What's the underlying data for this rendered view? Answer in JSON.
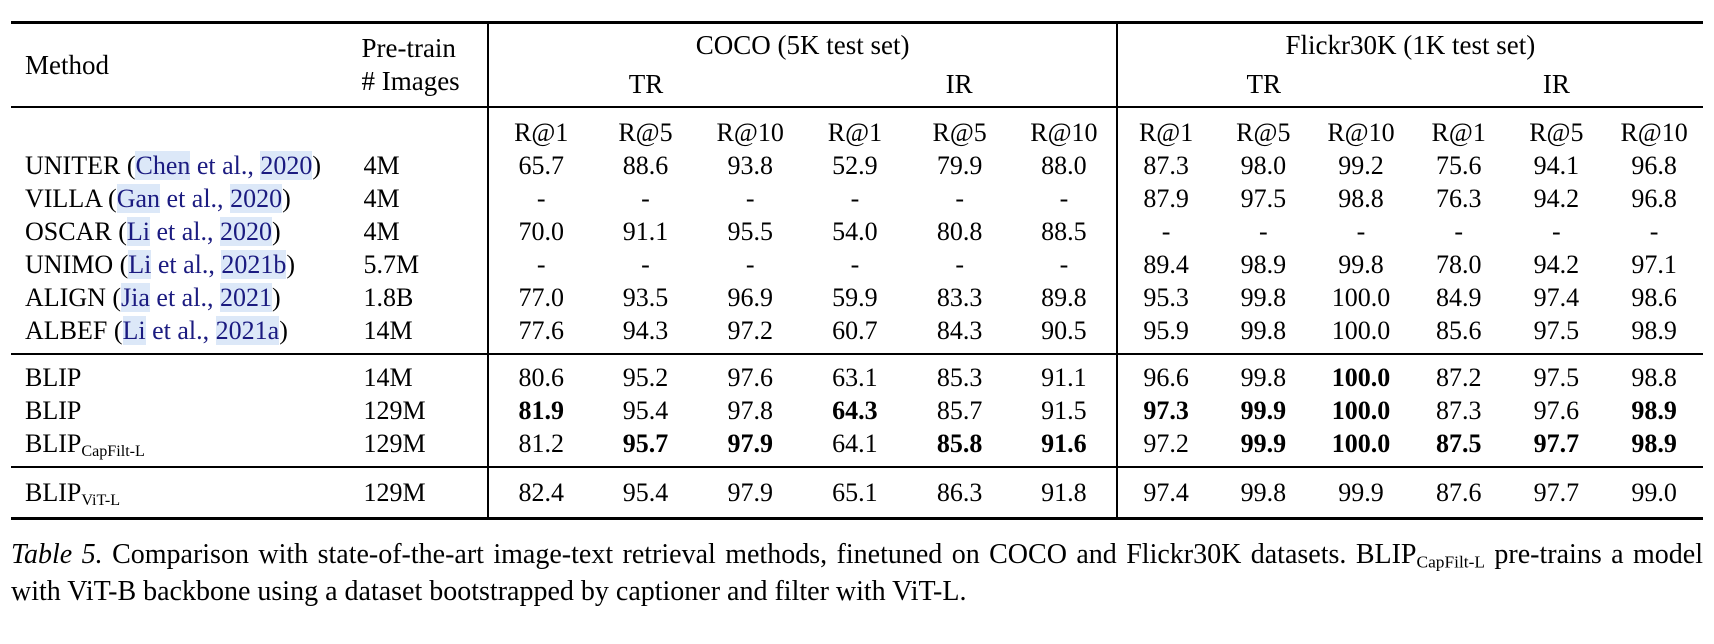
{
  "colors": {
    "citation_text": "#1b1b80",
    "citation_highlight": "#dce8f8",
    "rule": "#000000",
    "background": "#ffffff"
  },
  "table": {
    "header": {
      "method": "Method",
      "pretrain": [
        "Pre-train",
        "# Images"
      ],
      "groups": [
        {
          "label": "COCO (5K test set)"
        },
        {
          "label": "Flickr30K (1K test set)"
        }
      ],
      "subgroups": [
        "TR",
        "IR",
        "TR",
        "IR"
      ],
      "metrics": [
        "R@1",
        "R@5",
        "R@10",
        "R@1",
        "R@5",
        "R@10",
        "R@1",
        "R@5",
        "R@10",
        "R@1",
        "R@5",
        "R@10"
      ]
    },
    "rows": [
      {
        "method": [
          {
            "text": "UNITER (",
            "style": "plain"
          },
          {
            "text": "Chen",
            "style": "cite-hl"
          },
          {
            "text": " et al., ",
            "style": "cite"
          },
          {
            "text": "2020",
            "style": "cite-hl"
          },
          {
            "text": ")",
            "style": "plain"
          }
        ],
        "pretrain": "4M",
        "values": [
          "65.7",
          "88.6",
          "93.8",
          "52.9",
          "79.9",
          "88.0",
          "87.3",
          "98.0",
          "99.2",
          "75.6",
          "94.1",
          "96.8"
        ],
        "bold": [
          0,
          0,
          0,
          0,
          0,
          0,
          0,
          0,
          0,
          0,
          0,
          0
        ]
      },
      {
        "method": [
          {
            "text": "VILLA (",
            "style": "plain"
          },
          {
            "text": "Gan",
            "style": "cite-hl"
          },
          {
            "text": " et al., ",
            "style": "cite"
          },
          {
            "text": "2020",
            "style": "cite-hl"
          },
          {
            "text": ")",
            "style": "plain"
          }
        ],
        "pretrain": "4M",
        "values": [
          "-",
          "-",
          "-",
          "-",
          "-",
          "-",
          "87.9",
          "97.5",
          "98.8",
          "76.3",
          "94.2",
          "96.8"
        ],
        "bold": [
          0,
          0,
          0,
          0,
          0,
          0,
          0,
          0,
          0,
          0,
          0,
          0
        ]
      },
      {
        "method": [
          {
            "text": "OSCAR (",
            "style": "plain"
          },
          {
            "text": "Li",
            "style": "cite-hl"
          },
          {
            "text": " et al., ",
            "style": "cite"
          },
          {
            "text": "2020",
            "style": "cite-hl"
          },
          {
            "text": ")",
            "style": "plain"
          }
        ],
        "pretrain": "4M",
        "values": [
          "70.0",
          "91.1",
          "95.5",
          "54.0",
          "80.8",
          "88.5",
          "-",
          "-",
          "-",
          "-",
          "-",
          "-"
        ],
        "bold": [
          0,
          0,
          0,
          0,
          0,
          0,
          0,
          0,
          0,
          0,
          0,
          0
        ]
      },
      {
        "method": [
          {
            "text": "UNIMO (",
            "style": "plain"
          },
          {
            "text": "Li",
            "style": "cite-hl"
          },
          {
            "text": " et al., ",
            "style": "cite"
          },
          {
            "text": "2021b",
            "style": "cite-hl"
          },
          {
            "text": ")",
            "style": "plain"
          }
        ],
        "pretrain": "5.7M",
        "values": [
          "-",
          "-",
          "-",
          "-",
          "-",
          "-",
          "89.4",
          "98.9",
          "99.8",
          "78.0",
          "94.2",
          "97.1"
        ],
        "bold": [
          0,
          0,
          0,
          0,
          0,
          0,
          0,
          0,
          0,
          0,
          0,
          0
        ]
      },
      {
        "method": [
          {
            "text": "ALIGN (",
            "style": "plain"
          },
          {
            "text": "Jia",
            "style": "cite-hl"
          },
          {
            "text": " et al., ",
            "style": "cite"
          },
          {
            "text": "2021",
            "style": "cite-hl"
          },
          {
            "text": ")",
            "style": "plain"
          }
        ],
        "pretrain": "1.8B",
        "values": [
          "77.0",
          "93.5",
          "96.9",
          "59.9",
          "83.3",
          "89.8",
          "95.3",
          "99.8",
          "100.0",
          "84.9",
          "97.4",
          "98.6"
        ],
        "bold": [
          0,
          0,
          0,
          0,
          0,
          0,
          0,
          0,
          0,
          0,
          0,
          0
        ]
      },
      {
        "method": [
          {
            "text": "ALBEF (",
            "style": "plain"
          },
          {
            "text": "Li",
            "style": "cite-hl"
          },
          {
            "text": " et al., ",
            "style": "cite"
          },
          {
            "text": "2021a",
            "style": "cite-hl"
          },
          {
            "text": ")",
            "style": "plain"
          }
        ],
        "pretrain": "14M",
        "values": [
          "77.6",
          "94.3",
          "97.2",
          "60.7",
          "84.3",
          "90.5",
          "95.9",
          "99.8",
          "100.0",
          "85.6",
          "97.5",
          "98.9"
        ],
        "bold": [
          0,
          0,
          0,
          0,
          0,
          0,
          0,
          0,
          0,
          0,
          0,
          0
        ],
        "pad_bottom": true
      },
      {
        "method": [
          {
            "text": "BLIP",
            "style": "plain"
          }
        ],
        "pretrain": "14M",
        "values": [
          "80.6",
          "95.2",
          "97.6",
          "63.1",
          "85.3",
          "91.1",
          "96.6",
          "99.8",
          "100.0",
          "87.2",
          "97.5",
          "98.8"
        ],
        "bold": [
          0,
          0,
          0,
          0,
          0,
          0,
          0,
          0,
          1,
          0,
          0,
          0
        ],
        "rule_above": true
      },
      {
        "method": [
          {
            "text": "BLIP",
            "style": "plain"
          }
        ],
        "pretrain": "129M",
        "values": [
          "81.9",
          "95.4",
          "97.8",
          "64.3",
          "85.7",
          "91.5",
          "97.3",
          "99.9",
          "100.0",
          "87.3",
          "97.6",
          "98.9"
        ],
        "bold": [
          1,
          0,
          0,
          1,
          0,
          0,
          1,
          1,
          1,
          0,
          0,
          1
        ]
      },
      {
        "method": [
          {
            "text": "BLIP",
            "style": "plain"
          },
          {
            "text": "CapFilt-L",
            "style": "sub"
          }
        ],
        "pretrain": "129M",
        "values": [
          "81.2",
          "95.7",
          "97.9",
          "64.1",
          "85.8",
          "91.6",
          "97.2",
          "99.9",
          "100.0",
          "87.5",
          "97.7",
          "98.9"
        ],
        "bold": [
          0,
          1,
          1,
          0,
          1,
          1,
          0,
          1,
          1,
          1,
          1,
          1
        ],
        "pad_bottom": true
      },
      {
        "method": [
          {
            "text": "BLIP",
            "style": "plain"
          },
          {
            "text": "ViT-L",
            "style": "sub"
          }
        ],
        "pretrain": "129M",
        "values": [
          "82.4",
          "95.4",
          "97.9",
          "65.1",
          "86.3",
          "91.8",
          "97.4",
          "99.8",
          "99.9",
          "87.6",
          "97.7",
          "99.0"
        ],
        "bold": [
          0,
          0,
          0,
          0,
          0,
          0,
          0,
          0,
          0,
          0,
          0,
          0
        ],
        "rule_above": true,
        "tall": true
      }
    ]
  },
  "caption": {
    "segments": [
      {
        "text": "Table 5.",
        "style": "italic"
      },
      {
        "text": " Comparison with state-of-the-art image-text retrieval methods, finetuned on COCO and Flickr30K datasets. ",
        "style": "plain"
      },
      {
        "text": "BLIP",
        "style": "plain"
      },
      {
        "text": "CapFilt-L",
        "style": "sub"
      },
      {
        "text": " pre-trains a model with ViT-B backbone using a dataset bootstrapped by captioner and filter with ViT-L.",
        "style": "plain"
      }
    ]
  }
}
